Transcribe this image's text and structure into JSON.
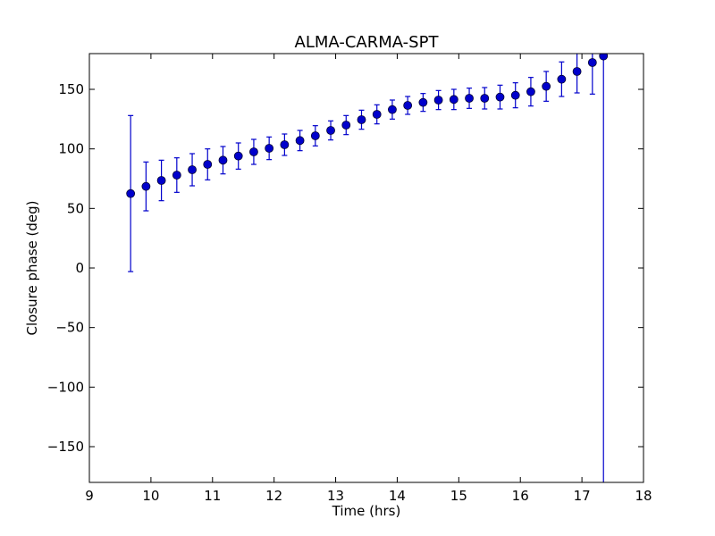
{
  "chart_data": {
    "type": "scatter",
    "title": "ALMA-CARMA-SPT",
    "xlabel": "Time (hrs)",
    "ylabel": "Closure phase (deg)",
    "xlim": [
      9,
      18
    ],
    "ylim": [
      -180,
      180
    ],
    "xticks": [
      9,
      10,
      11,
      12,
      13,
      14,
      15,
      16,
      17,
      18
    ],
    "xtick_labels": [
      "9",
      "10",
      "11",
      "12",
      "13",
      "14",
      "15",
      "16",
      "17",
      "18"
    ],
    "yticks": [
      -150,
      -100,
      -50,
      0,
      50,
      100,
      150
    ],
    "ytick_labels": [
      "−150",
      "−100",
      "−50",
      "0",
      "50",
      "100",
      "150"
    ],
    "grid": false,
    "marker_color": "#0000cc",
    "errorbar_color": "#0000cc",
    "series": [
      {
        "points": [
          {
            "x": 9.67,
            "y": 62.5,
            "err": 65.5
          },
          {
            "x": 9.92,
            "y": 68.5,
            "err": 20.5
          },
          {
            "x": 10.17,
            "y": 73.5,
            "err": 17
          },
          {
            "x": 10.42,
            "y": 78.0,
            "err": 14.5
          },
          {
            "x": 10.67,
            "y": 82.5,
            "err": 13.5
          },
          {
            "x": 10.92,
            "y": 87.0,
            "err": 13
          },
          {
            "x": 11.17,
            "y": 90.5,
            "err": 11.5
          },
          {
            "x": 11.42,
            "y": 94.0,
            "err": 11
          },
          {
            "x": 11.67,
            "y": 97.5,
            "err": 10.5
          },
          {
            "x": 11.92,
            "y": 100.5,
            "err": 9.5
          },
          {
            "x": 12.17,
            "y": 103.5,
            "err": 9
          },
          {
            "x": 12.42,
            "y": 107.0,
            "err": 8.5
          },
          {
            "x": 12.67,
            "y": 111.0,
            "err": 8.5
          },
          {
            "x": 12.92,
            "y": 115.5,
            "err": 8
          },
          {
            "x": 13.17,
            "y": 120.0,
            "err": 8
          },
          {
            "x": 13.42,
            "y": 124.5,
            "err": 8
          },
          {
            "x": 13.67,
            "y": 129.0,
            "err": 8
          },
          {
            "x": 13.92,
            "y": 133.0,
            "err": 8
          },
          {
            "x": 14.17,
            "y": 136.5,
            "err": 7.5
          },
          {
            "x": 14.42,
            "y": 139.0,
            "err": 7.5
          },
          {
            "x": 14.67,
            "y": 141.0,
            "err": 8
          },
          {
            "x": 14.92,
            "y": 141.5,
            "err": 8.5
          },
          {
            "x": 15.17,
            "y": 142.5,
            "err": 8.5
          },
          {
            "x": 15.42,
            "y": 142.5,
            "err": 9
          },
          {
            "x": 15.67,
            "y": 143.5,
            "err": 10
          },
          {
            "x": 15.92,
            "y": 145.0,
            "err": 10.5
          },
          {
            "x": 16.17,
            "y": 148.0,
            "err": 12
          },
          {
            "x": 16.42,
            "y": 152.5,
            "err": 12.5
          },
          {
            "x": 16.67,
            "y": 158.5,
            "err": 14.5
          },
          {
            "x": 16.92,
            "y": 165.0,
            "err": 18
          },
          {
            "x": 17.17,
            "y": 172.5,
            "err": 26.5
          },
          {
            "x": 17.35,
            "y": 178.0,
            "err": 360
          }
        ]
      }
    ]
  }
}
